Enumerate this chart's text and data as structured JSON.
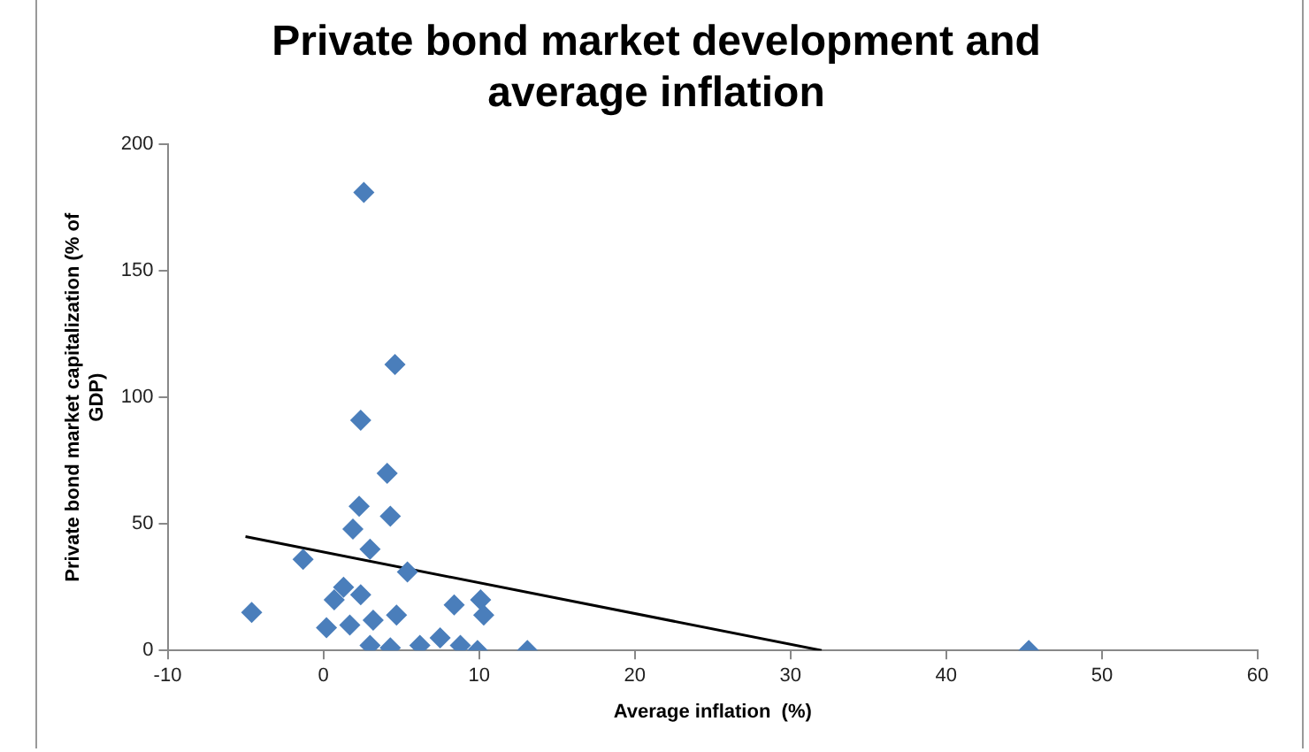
{
  "chart_data": {
    "type": "scatter",
    "title": "Private bond market development and average inflation",
    "xlabel": "Average inflation  (%)",
    "ylabel": "Private bond market capitalization (% of GDP)",
    "xlim": [
      -10,
      60
    ],
    "xticks": [
      -10,
      0,
      10,
      20,
      30,
      40,
      50,
      60
    ],
    "ylim": [
      0,
      200
    ],
    "yticks": [
      0,
      50,
      100,
      150,
      200
    ],
    "grid": false,
    "legend": false,
    "marker": "diamond",
    "series": [
      {
        "color": "#4a7ebb",
        "x": [
          2.6,
          4.6,
          2.4,
          4.1,
          2.3,
          4.3,
          1.9,
          -1.3,
          3.0,
          5.4,
          1.3,
          0.7,
          2.4,
          -4.6,
          0.2,
          1.7,
          4.7,
          3.2,
          8.4,
          10.1,
          10.3,
          3.0,
          4.3,
          6.2,
          7.5,
          8.8,
          9.9,
          13.1,
          45.3
        ],
        "values": [
          181,
          113,
          91,
          70,
          57,
          53,
          48,
          36,
          40,
          31,
          25,
          20,
          22,
          15,
          9,
          10,
          14,
          12,
          18,
          20,
          14,
          2,
          1,
          2,
          5,
          2,
          0,
          0,
          0
        ]
      },
      {
        "type": "line",
        "color": "#000000",
        "x": [
          -5,
          32
        ],
        "values": [
          45,
          0
        ],
        "marker": "none"
      }
    ]
  }
}
